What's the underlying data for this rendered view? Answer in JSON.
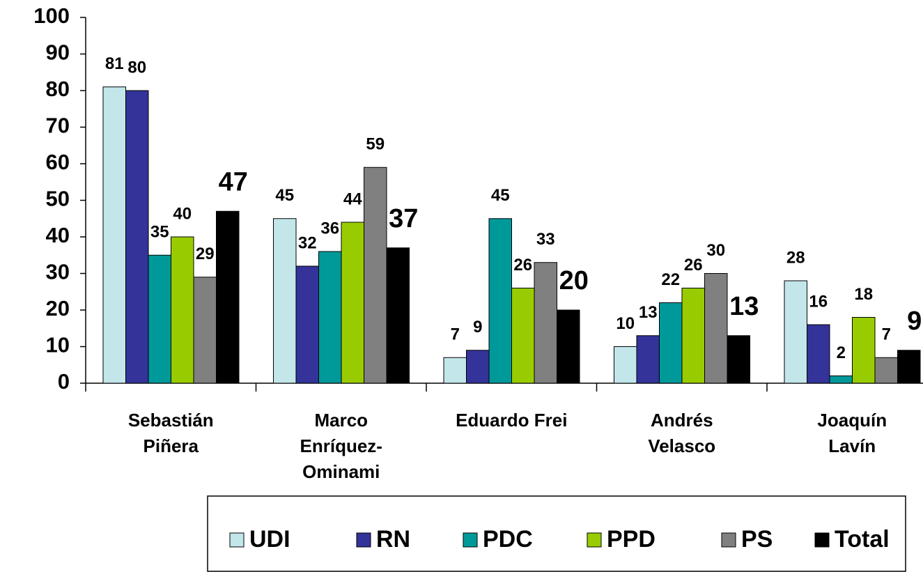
{
  "chart_data": {
    "type": "bar",
    "categories": [
      [
        "Sebastián",
        "Piñera"
      ],
      [
        "Marco",
        "Enríquez-",
        "Ominami"
      ],
      [
        "Eduardo Frei"
      ],
      [
        "Andrés",
        "Velasco"
      ],
      [
        "Joaquín",
        "Lavín"
      ]
    ],
    "series": [
      {
        "name": "UDI",
        "color": "#c2e6ea",
        "values": [
          81,
          45,
          7,
          10,
          28
        ]
      },
      {
        "name": "RN",
        "color": "#333399",
        "values": [
          80,
          32,
          9,
          13,
          16
        ]
      },
      {
        "name": "PDC",
        "color": "#009999",
        "values": [
          35,
          36,
          45,
          22,
          2
        ]
      },
      {
        "name": "PPD",
        "color": "#99cc00",
        "values": [
          40,
          44,
          26,
          26,
          18
        ]
      },
      {
        "name": "PS",
        "color": "#808080",
        "values": [
          29,
          59,
          33,
          30,
          7
        ]
      },
      {
        "name": "Total",
        "color": "#000000",
        "values": [
          47,
          37,
          20,
          13,
          9
        ]
      }
    ],
    "ylim": [
      0,
      100
    ],
    "yticks": [
      0,
      10,
      20,
      30,
      40,
      50,
      60,
      70,
      80,
      90,
      100
    ],
    "legend": "bottom"
  }
}
